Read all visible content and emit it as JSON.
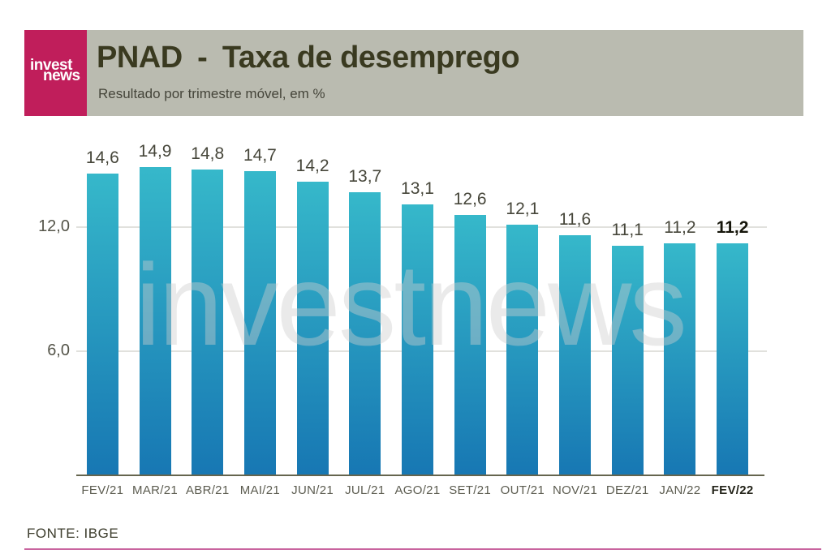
{
  "logo": {
    "line1": "invest",
    "line2": "news",
    "bg_color": "#C01E5B"
  },
  "header": {
    "title": "PNAD - Taxa de desemprego",
    "subtitle": "Resultado por trimestre móvel, em %",
    "bg_color": "#BABBB0",
    "text_color": "#3A3A20"
  },
  "watermark": "investnews",
  "footer": {
    "source": "FONTE: IBGE",
    "accent_line_color": "#C9649F"
  },
  "chart_data": {
    "type": "bar",
    "title": "PNAD - Taxa de desemprego",
    "subtitle": "Resultado por trimestre móvel, em %",
    "unit": "%",
    "categories": [
      "FEV/21",
      "MAR/21",
      "ABR/21",
      "MAI/21",
      "JUN/21",
      "JUL/21",
      "AGO/21",
      "SET/21",
      "OUT/21",
      "NOV/21",
      "DEZ/21",
      "JAN/22",
      "FEV/22"
    ],
    "values": [
      14.6,
      14.9,
      14.8,
      14.7,
      14.2,
      13.7,
      13.1,
      12.6,
      12.1,
      11.6,
      11.1,
      11.2,
      11.2
    ],
    "value_labels": [
      "14,6",
      "14,9",
      "14,8",
      "14,7",
      "14,2",
      "13,7",
      "13,1",
      "12,6",
      "12,1",
      "11,6",
      "11,1",
      "11,2",
      "11,2"
    ],
    "yticks": [
      {
        "value": 12,
        "label": "12,0"
      },
      {
        "value": 6,
        "label": "6,0"
      }
    ],
    "ylim": [
      0,
      16
    ],
    "grid": true,
    "legend": "none",
    "highlight_last_index": 12,
    "bar_gradient_top": "#36B8CA",
    "bar_gradient_bottom": "#1777B3",
    "source": "FONTE: IBGE"
  }
}
